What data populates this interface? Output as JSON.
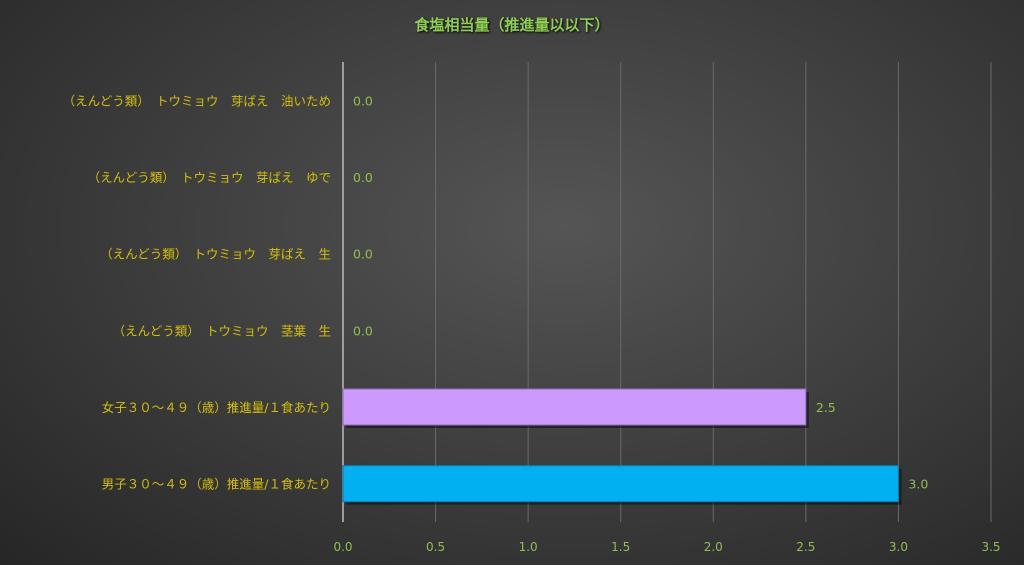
{
  "chart_data": {
    "type": "bar",
    "orientation": "horizontal",
    "title": "食塩相当量（推進量以以下）",
    "categories": [
      "（えんどう類）　トウミョウ　芽ばえ　油いため",
      "（えんどう類）　トウミョウ　芽ばえ　ゆで",
      "（えんどう類）　トウミョウ　芽ばえ　生",
      "（えんどう類）　トウミョウ　茎葉　生",
      "女子３０～４９（歳）推進量/１食あたり",
      "男子３０～４９（歳）推進量/１食あたり"
    ],
    "values": [
      0.0,
      0.0,
      0.0,
      0.0,
      2.5,
      3.0
    ],
    "data_labels": [
      "0.0",
      "0.0",
      "0.0",
      "0.0",
      "2.5",
      "3.0"
    ],
    "bar_colors": [
      "#cc99ff",
      "#cc99ff",
      "#cc99ff",
      "#cc99ff",
      "#cc99ff",
      "#00b0f0"
    ],
    "xlim": [
      0,
      3.5
    ],
    "x_ticks": [
      "0.0",
      "0.5",
      "1.0",
      "1.5",
      "2.0",
      "2.5",
      "3.0",
      "3.5"
    ],
    "grid": "vertical",
    "legend": "none",
    "colors": {
      "category_label": "#d4c000",
      "value_label": "#8fbf4f",
      "title": "#8fcf4f"
    }
  }
}
